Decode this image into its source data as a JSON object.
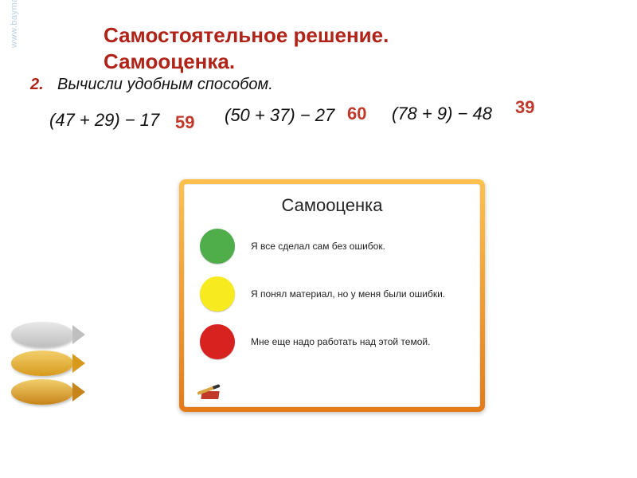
{
  "watermark": "www.baymaks...",
  "title_line1": "Самостоятельное решение.",
  "title_line2": "Самооценка.",
  "task": {
    "number": "2.",
    "text": "Вычисли удобным способом."
  },
  "expressions": [
    {
      "expr": "(47 + 29) − 17",
      "answer": "59"
    },
    {
      "expr": "(50 + 37) − 27",
      "answer": "60"
    },
    {
      "expr": "(78 + 9) − 48",
      "answer": "39"
    }
  ],
  "card": {
    "title": "Самооценка",
    "items": [
      {
        "color": "#4fae4a",
        "text": "Я все сделал сам без ошибок."
      },
      {
        "color": "#f7ea1f",
        "text": "Я понял материал, но у меня были ошибки."
      },
      {
        "color": "#d8221f",
        "text": "Мне еще надо работать над этой темой."
      }
    ]
  },
  "spiral_colors": {
    "ring1_bg": "linear-gradient(180deg,#e8e8e8,#bfbfbf)",
    "ring1_arrow": "#bfbfbf",
    "ring2_bg": "linear-gradient(180deg,#f2cf6b,#d79a1d)",
    "ring2_arrow": "#d79a1d",
    "ring3_bg": "linear-gradient(180deg,#f2cf6b,#c7841a)",
    "ring3_arrow": "#c7841a"
  }
}
